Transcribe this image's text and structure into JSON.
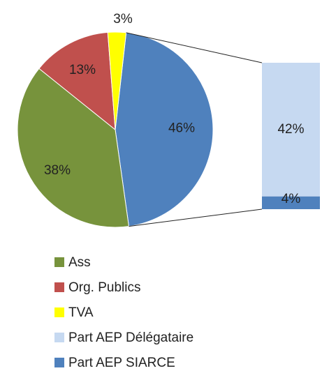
{
  "chart_data": {
    "type": "pie",
    "categories": [
      "Ass",
      "Org. Publics",
      "TVA",
      "Part AEP Délégataire",
      "Part AEP SIARCE"
    ],
    "values": [
      38,
      13,
      3,
      42,
      4
    ],
    "value_labels": [
      "38%",
      "13%",
      "3%",
      "42%",
      "4%"
    ],
    "colors": [
      "#77933c",
      "#c0504d",
      "#ffff00",
      "#c6d9f1",
      "#4f81bd"
    ],
    "other": {
      "value": 46,
      "label": "46%",
      "color": "#4f81bd"
    },
    "legend": "bottom"
  }
}
